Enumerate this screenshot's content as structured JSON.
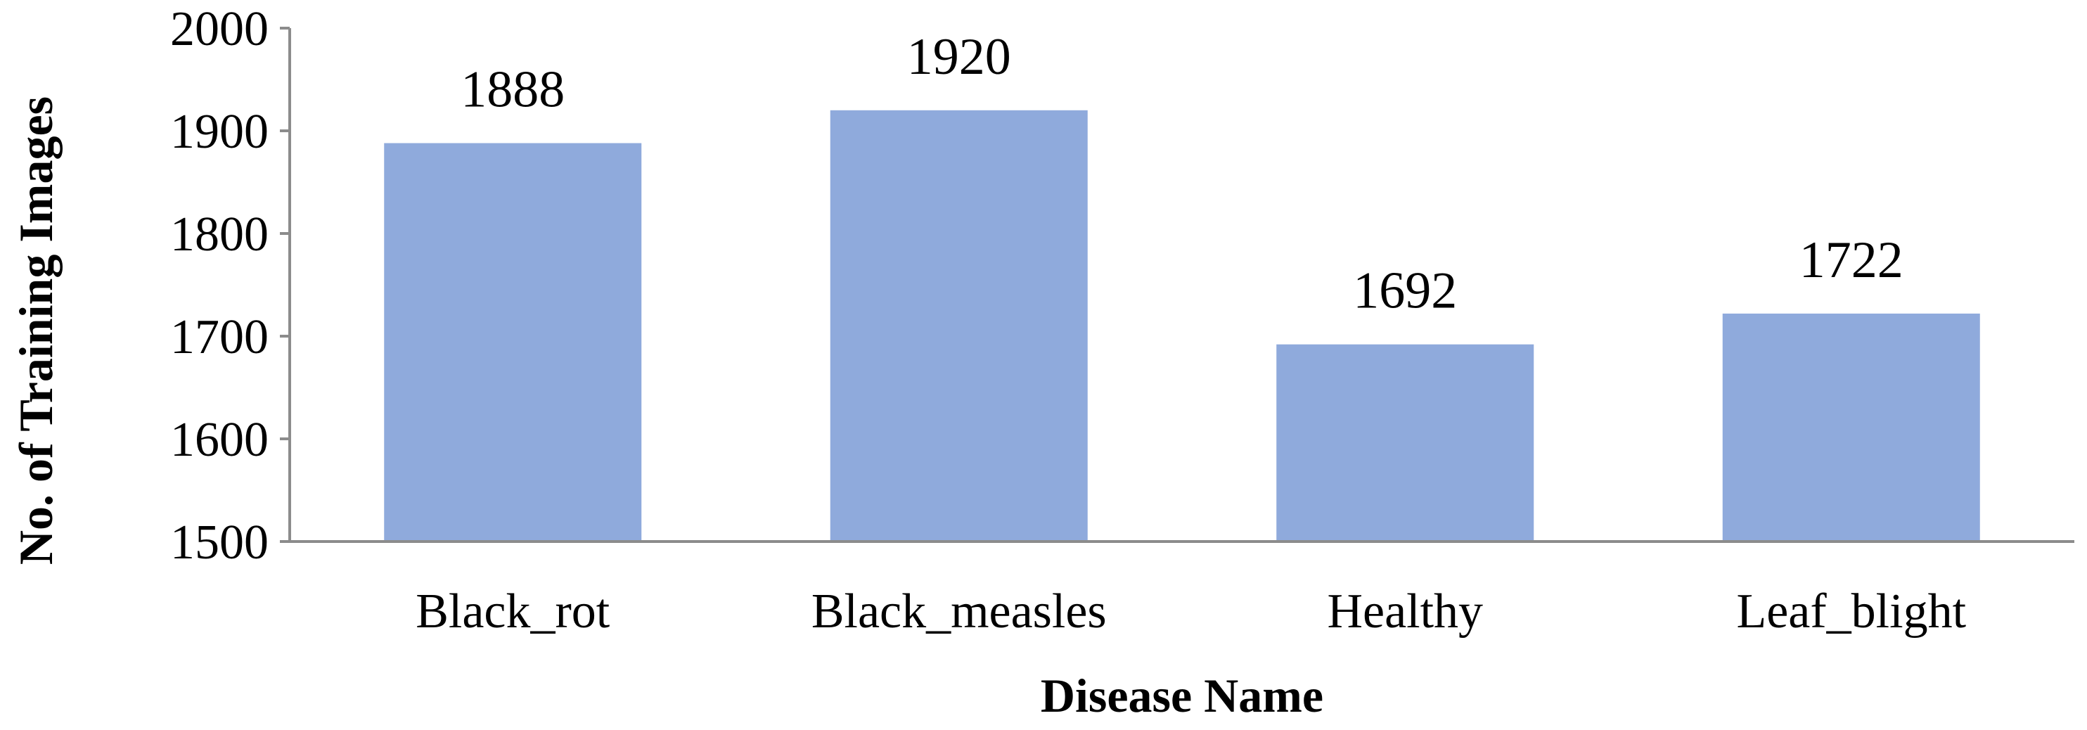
{
  "chart_data": {
    "type": "bar",
    "categories": [
      "Black_rot",
      "Black_measles",
      "Healthy",
      "Leaf_blight"
    ],
    "values": [
      1888,
      1920,
      1692,
      1722
    ],
    "data_labels": [
      "1888",
      "1920",
      "1692",
      "1722"
    ],
    "title": "",
    "xlabel": "Disease Name",
    "ylabel": "No. of Training Images",
    "ylim": [
      1500,
      2000
    ],
    "yticks": [
      "1500",
      "1600",
      "1700",
      "1800",
      "1900",
      "2000"
    ],
    "grid": false,
    "legend": "none",
    "bar_color": "#8faadc"
  }
}
